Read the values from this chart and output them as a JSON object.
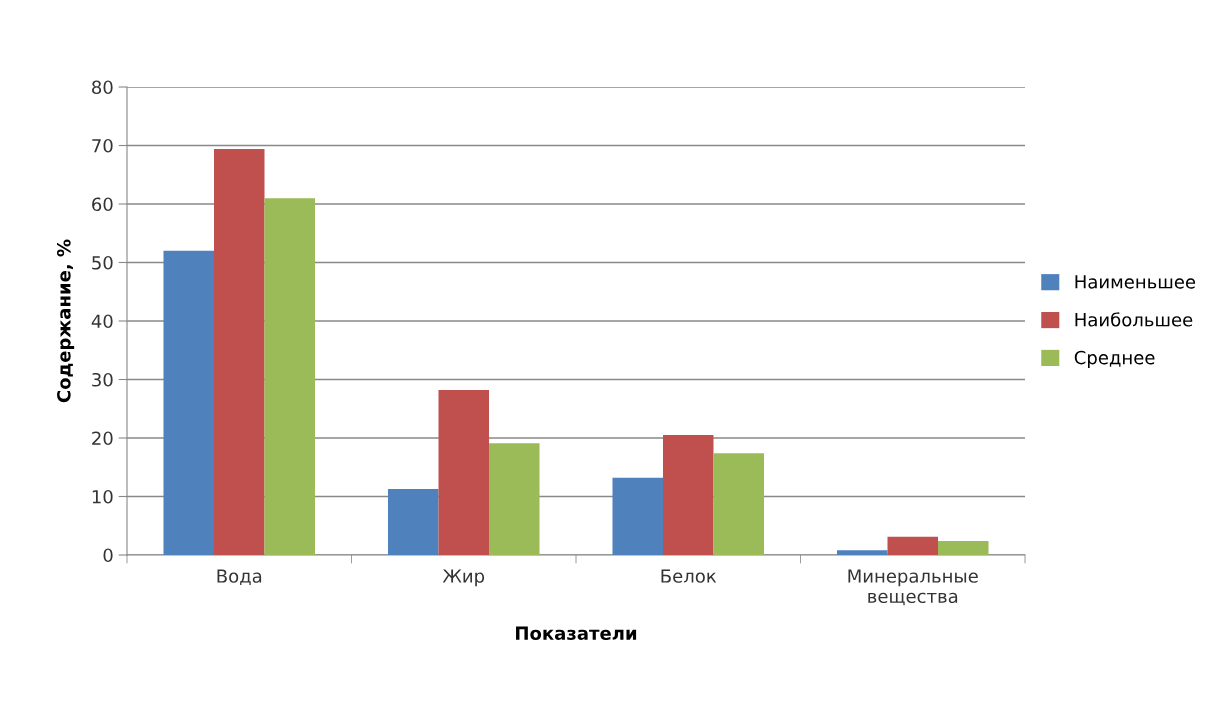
{
  "chart_data": {
    "type": "bar",
    "xlabel": "Показатели",
    "ylabel": "Содержание, %",
    "categories": [
      "Вода",
      "Жир",
      "Белок",
      "Минеральные\nвещества"
    ],
    "series": [
      {
        "name": "Наименьшее",
        "color": "#4f81bd",
        "values": [
          52.0,
          11.3,
          13.2,
          0.8
        ]
      },
      {
        "name": "Наибольшее",
        "color": "#c0504d",
        "values": [
          69.4,
          28.2,
          20.5,
          3.1
        ]
      },
      {
        "name": "Среднее",
        "color": "#9bbb59",
        "values": [
          61.0,
          19.1,
          17.4,
          2.4
        ]
      }
    ],
    "ylim": [
      0,
      80
    ],
    "yticks": [
      0,
      10,
      20,
      30,
      40,
      50,
      60,
      70,
      80
    ],
    "grid": "y",
    "legend": "right"
  }
}
